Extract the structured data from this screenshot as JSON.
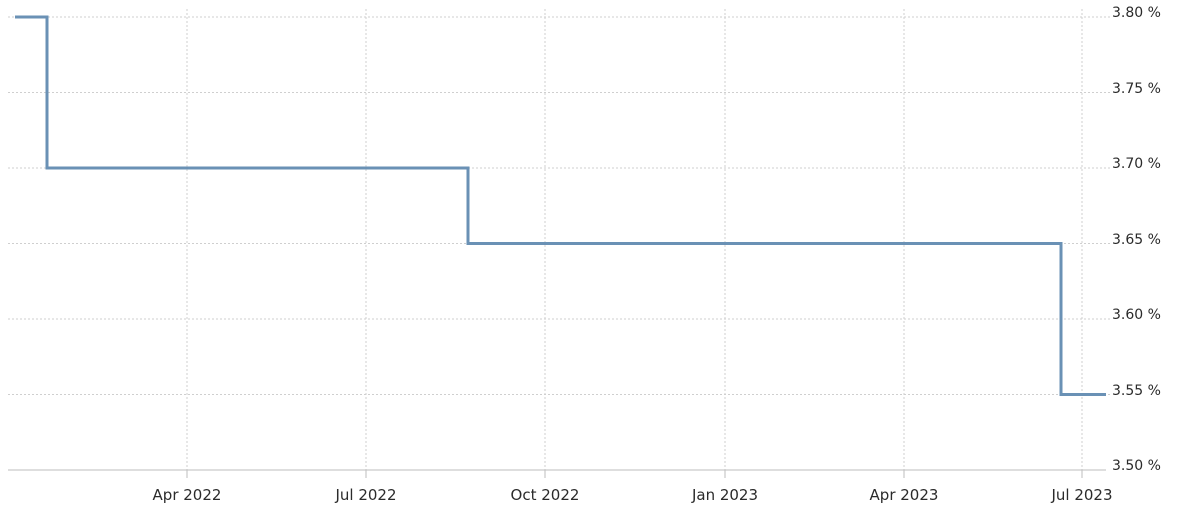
{
  "chart_data": {
    "type": "line",
    "step": true,
    "x": [
      "2022-01",
      "2022-02",
      "2022-09",
      "2023-06",
      "2023-07"
    ],
    "values": [
      3.8,
      3.7,
      3.65,
      3.55,
      3.55
    ],
    "xlim": [
      "2022-01",
      "2023-07"
    ],
    "x_ticks": [
      "Apr 2022",
      "Jul 2022",
      "Oct 2022",
      "Jan 2023",
      "Apr 2023",
      "Jul 2023"
    ],
    "y_ticks": [
      "3.80 %",
      "3.75 %",
      "3.70 %",
      "3.65 %",
      "3.60 %",
      "3.55 %",
      "3.50 %"
    ],
    "ylim": [
      3.5,
      3.8
    ],
    "grid": true,
    "colors": {
      "series": "#6a91b5",
      "grid": "#cfcfcf",
      "axis": "#bdbdbd"
    }
  }
}
